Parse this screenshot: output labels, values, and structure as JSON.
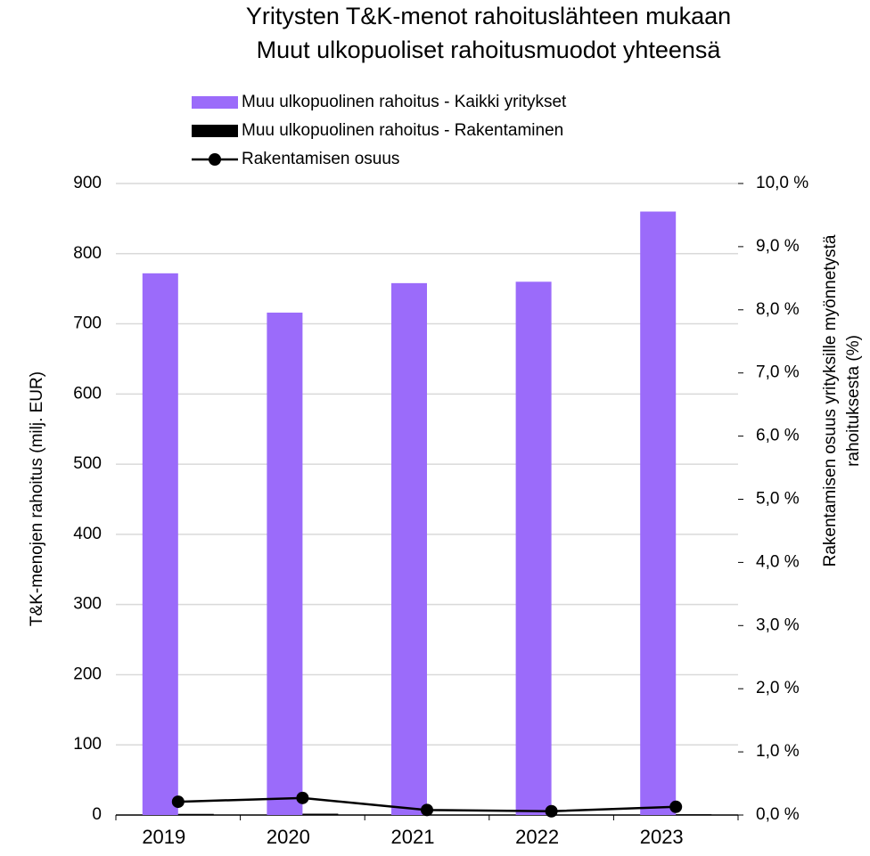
{
  "chart_data": {
    "type": "bar",
    "title": "Yritysten T&K-menot rahoituslähteen mukaan",
    "subtitle": "Muut ulkopuoliset rahoitusmuodot yhteensä",
    "ylabel": "T&K-menojen rahoitus (milj. EUR)",
    "y2label": [
      "Rakentamisen osuus yrityksille myönnetystä",
      "rahoituksesta (%)"
    ],
    "categories": [
      "2019",
      "2020",
      "2021",
      "2022",
      "2023"
    ],
    "series": [
      {
        "name": "Muu ulkopuolinen rahoitus - Kaikki yritykset",
        "type": "bar",
        "color": "#9b6bfa",
        "values": [
          772,
          716,
          758,
          760,
          860
        ]
      },
      {
        "name": "Muu ulkopuolinen rahoitus - Rakentaminen",
        "type": "bar",
        "color": "#000000",
        "values": [
          1.6,
          1.9,
          0.6,
          0.5,
          1.1
        ]
      },
      {
        "name": "Rakentamisen osuus",
        "type": "line",
        "axis": "y2",
        "color": "#000000",
        "values": [
          0.21,
          0.27,
          0.08,
          0.06,
          0.13
        ]
      }
    ],
    "ylim": [
      0,
      900
    ],
    "yticks": [
      0,
      100,
      200,
      300,
      400,
      500,
      600,
      700,
      800,
      900
    ],
    "y2lim": [
      0,
      10
    ],
    "y2ticks": [
      {
        "value": 0,
        "label": "0,0 %"
      },
      {
        "value": 1,
        "label": "1,0 %"
      },
      {
        "value": 2,
        "label": "2,0 %"
      },
      {
        "value": 3,
        "label": "3,0 %"
      },
      {
        "value": 4,
        "label": "4,0 %"
      },
      {
        "value": 5,
        "label": "5,0 %"
      },
      {
        "value": 6,
        "label": "6,0 %"
      },
      {
        "value": 7,
        "label": "7,0 %"
      },
      {
        "value": 8,
        "label": "8,0 %"
      },
      {
        "value": 9,
        "label": "9,0 %"
      },
      {
        "value": 10,
        "label": "10,0 %"
      }
    ],
    "grid": true,
    "legend": "top"
  }
}
